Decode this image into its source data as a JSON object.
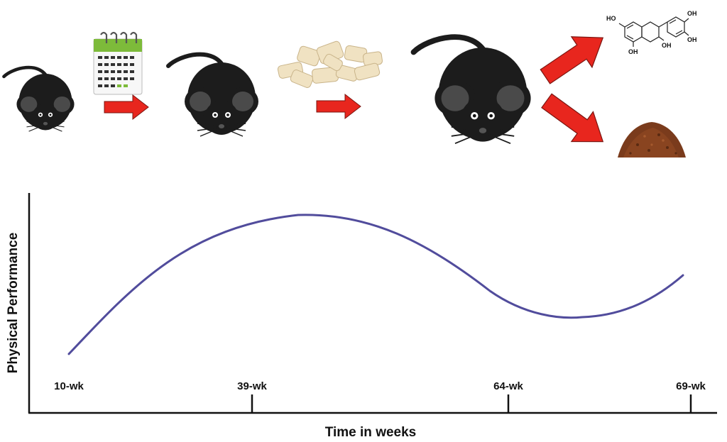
{
  "diagram": {
    "stages": [
      {
        "name": "young-mouse",
        "icon": "mouse-icon"
      },
      {
        "name": "time-passage",
        "icon": "calendar-icon"
      },
      {
        "name": "middle-aged-mouse",
        "icon": "mouse-icon"
      },
      {
        "name": "supplement",
        "icon": "food-pieces-icon"
      },
      {
        "name": "old-mouse",
        "icon": "mouse-icon"
      },
      {
        "name": "epicatechin",
        "icon": "chemical-structure-icon"
      },
      {
        "name": "cocoa",
        "icon": "cocoa-powder-icon"
      }
    ],
    "arrow_color": "#e8261e",
    "mouse_color": "#1c1c1c",
    "molecule_labels": [
      "HO",
      "OH",
      "OH",
      "OH",
      "OH"
    ]
  },
  "chart": {
    "xlabel": "Time in weeks",
    "ylabel": "Physical Performance",
    "ticks": [
      "10-wk",
      "39-wk",
      "64-wk",
      "69-wk"
    ],
    "line_color": "#514c9c"
  },
  "chart_data": {
    "type": "line",
    "xlabel": "Time in weeks",
    "ylabel": "Physical Performance",
    "tick_labels": [
      "10-wk",
      "39-wk",
      "64-wk",
      "69-wk"
    ],
    "series": [
      {
        "x": [
          "10-wk",
          "39-wk",
          "64-wk",
          "69-wk"
        ],
        "y": [
          0.03,
          0.98,
          0.35,
          0.58
        ]
      }
    ],
    "grid": false,
    "legend": "none"
  }
}
